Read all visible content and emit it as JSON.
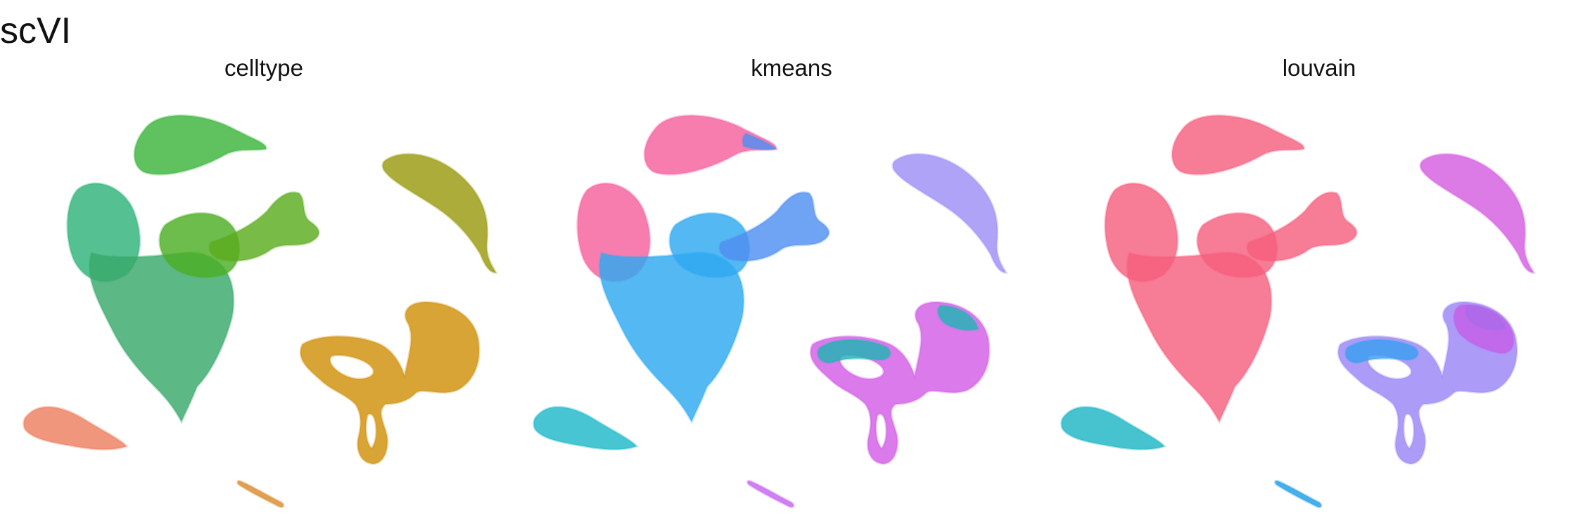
{
  "figure": {
    "title": "scVI"
  },
  "chart_data": [
    {
      "type": "scatter",
      "title": "celltype",
      "grid": false,
      "axes": "none",
      "legend": "none",
      "clusters": [
        {
          "shape": "top-leaf",
          "color": "#3cb43c"
        },
        {
          "shape": "main-body-left",
          "color": "#2fb37a"
        },
        {
          "shape": "main-body-core",
          "color": "#38a86a"
        },
        {
          "shape": "main-body-upper",
          "color": "#4caf23"
        },
        {
          "shape": "arm",
          "color": "#5cac1f"
        },
        {
          "shape": "right-leaf",
          "color": "#9a9a10"
        },
        {
          "shape": "loop",
          "color": "#d1900a"
        },
        {
          "shape": "bottom-left-leaf",
          "color": "#ec7f5f"
        },
        {
          "shape": "bottom-stick",
          "color": "#d98b2f"
        }
      ]
    },
    {
      "type": "scatter",
      "title": "kmeans",
      "grid": false,
      "axes": "none",
      "legend": "none",
      "clusters": [
        {
          "shape": "top-leaf",
          "color": "#f5609e"
        },
        {
          "shape": "top-leaf-tip",
          "color": "#4f8ff0"
        },
        {
          "shape": "main-body-left",
          "color": "#f5609e"
        },
        {
          "shape": "main-body-core",
          "color": "#2ea9f0"
        },
        {
          "shape": "main-body-upper",
          "color": "#2ea9f0"
        },
        {
          "shape": "arm",
          "color": "#4f8ff0"
        },
        {
          "shape": "right-leaf",
          "color": "#9d8ff5"
        },
        {
          "shape": "loop",
          "color": "#d25de6"
        },
        {
          "shape": "loop-accent",
          "color": "#1fb4b4"
        },
        {
          "shape": "bottom-left-leaf",
          "color": "#1fb8c9"
        },
        {
          "shape": "bottom-stick",
          "color": "#c565ee"
        }
      ]
    },
    {
      "type": "scatter",
      "title": "louvain",
      "grid": false,
      "axes": "none",
      "legend": "none",
      "clusters": [
        {
          "shape": "top-leaf",
          "color": "#f55f7e"
        },
        {
          "shape": "main-body-left",
          "color": "#f55f7e"
        },
        {
          "shape": "main-body-core",
          "color": "#f55f7e"
        },
        {
          "shape": "main-body-upper",
          "color": "#f55f7e"
        },
        {
          "shape": "arm",
          "color": "#f55f7e"
        },
        {
          "shape": "right-leaf",
          "color": "#d45ee0"
        },
        {
          "shape": "loop",
          "color": "#9b86f5"
        },
        {
          "shape": "loop-accent",
          "color": "#3a9ff0"
        },
        {
          "shape": "loop-upper",
          "color": "#c45ee8"
        },
        {
          "shape": "bottom-left-leaf",
          "color": "#1fb5c4"
        },
        {
          "shape": "bottom-stick",
          "color": "#1f9fe8"
        }
      ]
    }
  ]
}
